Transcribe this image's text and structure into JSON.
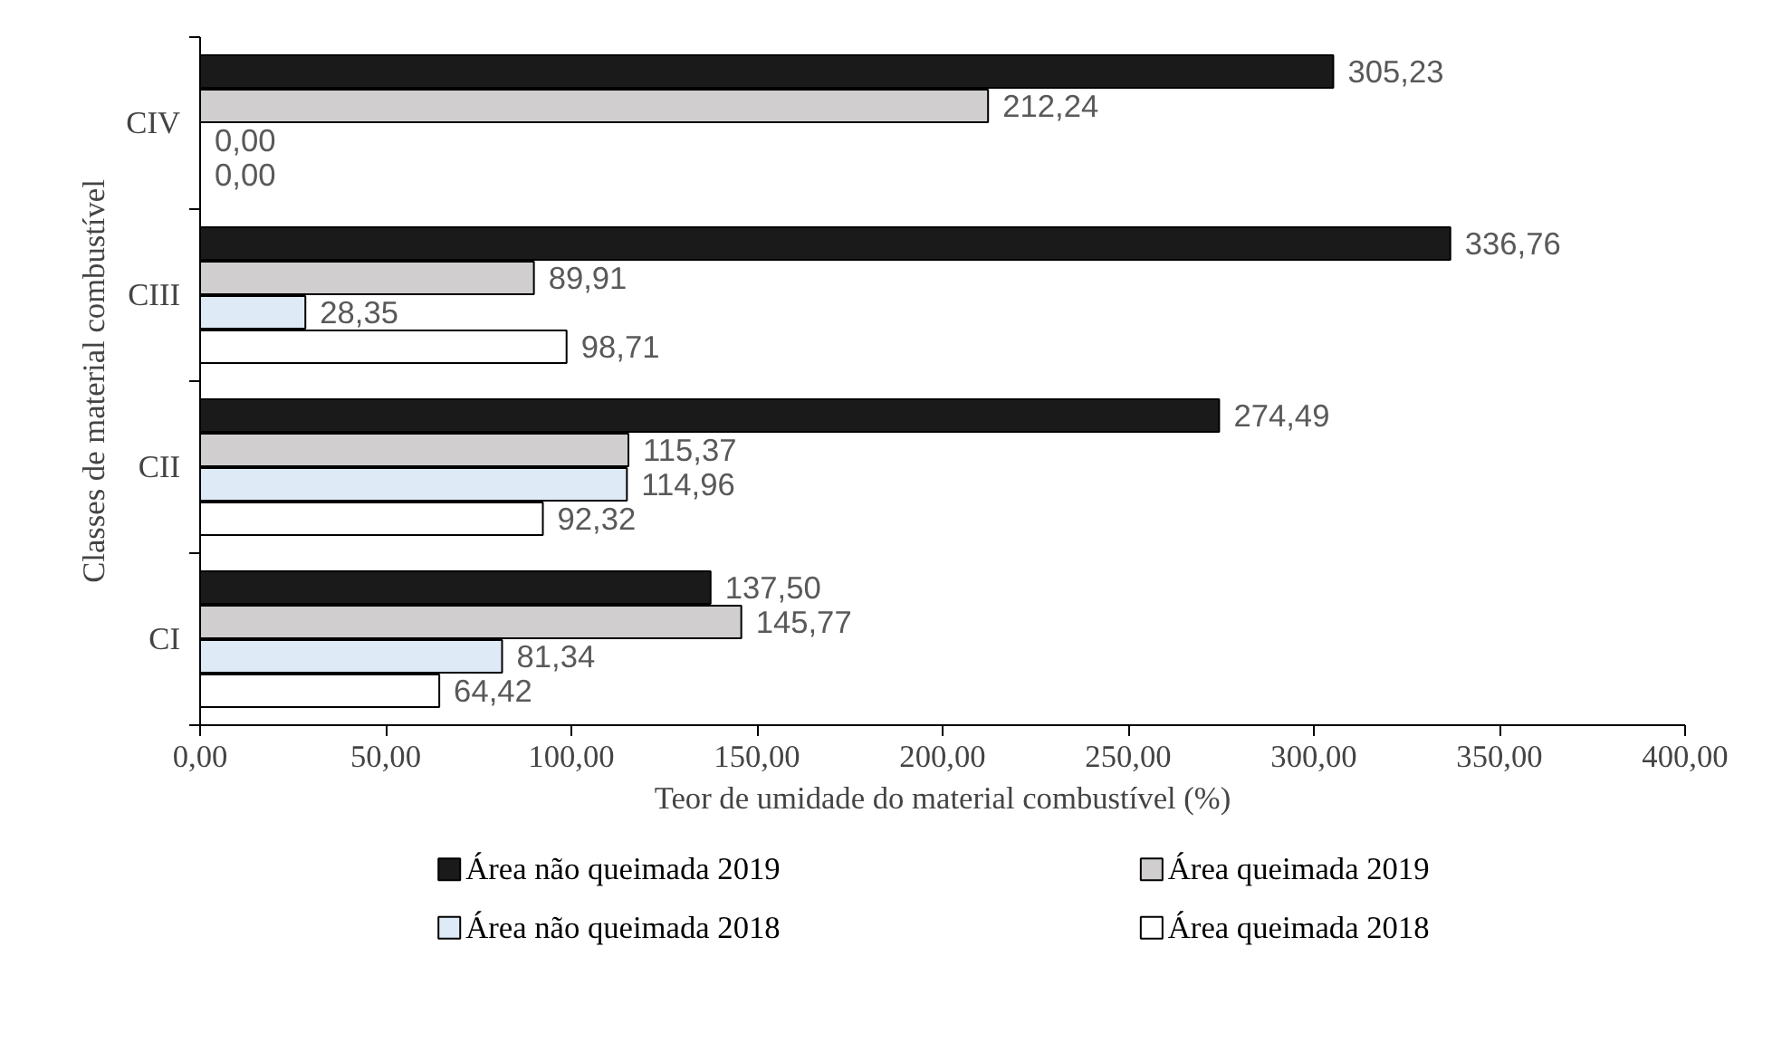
{
  "chart_data": {
    "type": "bar",
    "orientation": "horizontal",
    "xlabel": "Teor de umidade do material combustível (%)",
    "ylabel": "Classes de material combustível",
    "categories": [
      "CIV",
      "CIII",
      "CII",
      "CI"
    ],
    "series": [
      {
        "name": "Área não queimada 2019",
        "color": "#1a1a1a",
        "values": [
          305.23,
          336.76,
          274.49,
          137.5
        ],
        "value_labels": [
          "305,23",
          "336,76",
          "274,49",
          "137,50"
        ]
      },
      {
        "name": "Área queimada 2019",
        "color": "#d0cece",
        "values": [
          212.24,
          89.91,
          115.37,
          145.77
        ],
        "value_labels": [
          "212,24",
          "89,91",
          "115,37",
          "145,77"
        ]
      },
      {
        "name": "Área não queimada 2018",
        "color": "#deebf7",
        "values": [
          0.0,
          28.35,
          114.96,
          81.34
        ],
        "value_labels": [
          "0,00",
          "28,35",
          "114,96",
          "81,34"
        ]
      },
      {
        "name": "Área queimada 2018",
        "color": "#ffffff",
        "values": [
          0.0,
          98.71,
          92.32,
          64.42
        ],
        "value_labels": [
          "0,00",
          "98,71",
          "92,32",
          "64,42"
        ]
      }
    ],
    "xlim": [
      0,
      400
    ],
    "xticks": [
      {
        "value": 0,
        "label": "0,00"
      },
      {
        "value": 50,
        "label": "50,00"
      },
      {
        "value": 100,
        "label": "100,00"
      },
      {
        "value": 150,
        "label": "150,00"
      },
      {
        "value": 200,
        "label": "200,00"
      },
      {
        "value": 250,
        "label": "250,00"
      },
      {
        "value": 300,
        "label": "300,00"
      },
      {
        "value": 350,
        "label": "350,00"
      },
      {
        "value": 400,
        "label": "400,00"
      }
    ],
    "grid": false,
    "legend": "bottom"
  }
}
